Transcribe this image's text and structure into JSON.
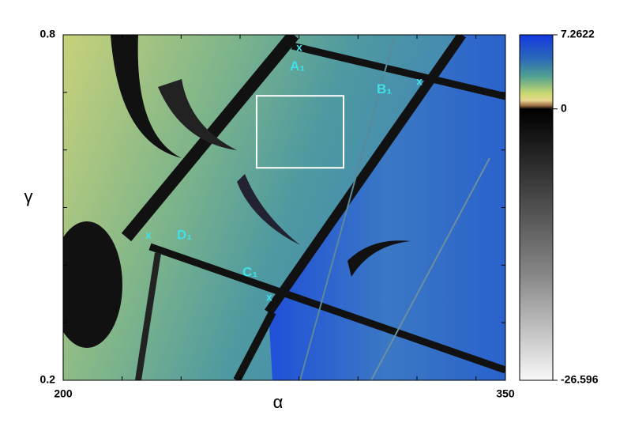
{
  "chart_data": {
    "type": "heatmap",
    "xlabel": "α",
    "ylabel": "γ",
    "xlim": [
      200,
      350
    ],
    "ylim": [
      0.2,
      0.8
    ],
    "xticks": [
      200,
      350
    ],
    "yticks": [
      0.2,
      0.8
    ],
    "minor_xticks": [
      220,
      240,
      260,
      280,
      300,
      320,
      340
    ],
    "minor_yticks": [
      0.3,
      0.4,
      0.5,
      0.6,
      0.7
    ],
    "colorbar": {
      "lim": [
        -26.596,
        7.2622
      ],
      "ticks": [
        -26.596,
        0,
        7.2622
      ]
    },
    "marker": "x",
    "marker_color": "#40e0e8",
    "points": [
      {
        "label": "A₁",
        "x": 280.1,
        "y": 0.777
      },
      {
        "label": "B₁",
        "x": 320.8,
        "y": 0.718
      },
      {
        "label": "C₁",
        "x": 269.9,
        "y": 0.343
      },
      {
        "label": "D₁",
        "x": 228.9,
        "y": 0.451
      }
    ],
    "zoom_box": {
      "xlim": [
        265.6,
        295.1
      ],
      "ylim": [
        0.569,
        0.694
      ]
    }
  }
}
